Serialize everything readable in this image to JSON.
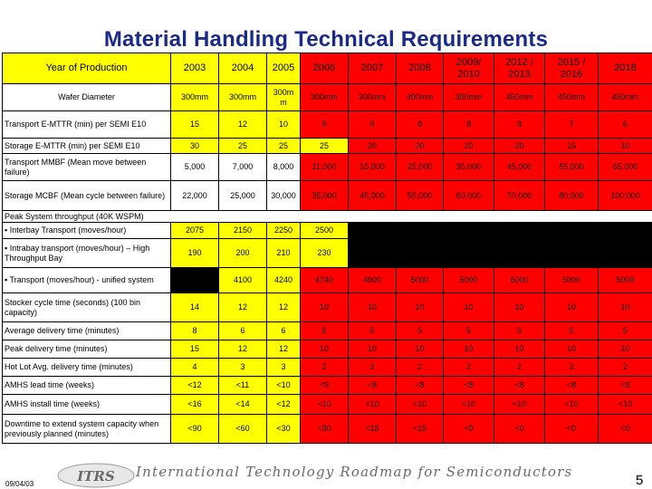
{
  "title": "Material Handling Technical Requirements",
  "header": {
    "label": "Year of Production",
    "years": [
      "2003",
      "2004",
      "2005",
      "2006",
      "2007",
      "2008",
      "2009/ 2010",
      "2012 / 2013",
      "2015 / 2016",
      "2018"
    ]
  },
  "rows": {
    "wafer": {
      "label": "Wafer Diameter",
      "values": [
        "300mm",
        "300mm",
        "300m m",
        "300mm",
        "300mm",
        "300mm",
        "300mm",
        "450mm",
        "450mm",
        "450mm"
      ]
    },
    "transport_mttr": {
      "label": "Transport E-MTTR (min) per SEMI E10",
      "values": [
        "15",
        "12",
        "10",
        "9",
        "9",
        "8",
        "8",
        "8",
        "7",
        "6"
      ]
    },
    "storage_mttr": {
      "label": "Storage E-MTTR (min) per SEMI E10",
      "values": [
        "30",
        "25",
        "25",
        "25",
        "20",
        "20",
        "20",
        "20",
        "15",
        "10"
      ]
    },
    "transport_mmbf": {
      "label": "Transport MMBF (Mean move between failure)",
      "values": [
        "5,000",
        "7,000",
        "8,000",
        "11,000",
        "15,000",
        "25,000",
        "35,000",
        "45,000",
        "55,000",
        "65,000"
      ]
    },
    "storage_mcbf": {
      "label": "Storage MCBF (Mean cycle between failure)",
      "values": [
        "22,000",
        "25,000",
        "30,000",
        "35,000",
        "45,000",
        "55,000",
        "60,000",
        "70,000",
        "80,000",
        "100,000"
      ]
    },
    "peak_header": {
      "label": "Peak System throughput (40K WSPM)"
    },
    "interbay": {
      "label": "▪ Interbay Transport (moves/hour)",
      "values": [
        "2075",
        "2150",
        "2250",
        "2500",
        "",
        "",
        "",
        "",
        "",
        ""
      ]
    },
    "intrabay": {
      "label": "▪ Intrabay transport (moves/hour) – High Throughput Bay",
      "values": [
        "190",
        "200",
        "210",
        "230",
        "",
        "",
        "",
        "",
        "",
        ""
      ]
    },
    "unified": {
      "label": "▪ Transport (moves/hour) - unified system",
      "values": [
        "",
        "4100",
        "4240",
        "4740",
        "4900",
        "5000",
        "5000",
        "5000",
        "5000",
        "5000"
      ]
    },
    "stocker": {
      "label": "Stocker cycle time (seconds) (100 bin capacity)",
      "values": [
        "14",
        "12",
        "12",
        "10",
        "10",
        "10",
        "10",
        "10",
        "10",
        "10"
      ]
    },
    "avg_delivery": {
      "label": "Average delivery time (minutes)",
      "values": [
        "8",
        "6",
        "6",
        "5",
        "5",
        "5",
        "5",
        "5",
        "5",
        "5"
      ]
    },
    "peak_delivery": {
      "label": "Peak delivery time (minutes)",
      "values": [
        "15",
        "12",
        "12",
        "10",
        "10",
        "10",
        "10",
        "10",
        "10",
        "10"
      ]
    },
    "hot_lot": {
      "label": "Hot Lot Avg. delivery time (minutes)",
      "values": [
        "4",
        "3",
        "3",
        "2",
        "2",
        "2",
        "2",
        "2",
        "2",
        "2"
      ]
    },
    "amhs_lead": {
      "label": "AMHS lead time (weeks)",
      "values": [
        "<12",
        "<11",
        "<10",
        "<9",
        "<8",
        "<8",
        "<8",
        "<8",
        "<8",
        "<8"
      ]
    },
    "amhs_install": {
      "label": "AMHS install time (weeks)",
      "values": [
        "<16",
        "<14",
        "<12",
        "<10",
        "<10",
        "<10",
        "<10",
        "<10",
        "<10",
        "<10"
      ]
    },
    "downtime": {
      "label": "Downtime to extend system capacity when previously planned (minutes)",
      "values": [
        "<90",
        "<60",
        "<30",
        "<30",
        "<15",
        "<15",
        "<0",
        "<0",
        "<0",
        "<0"
      ]
    }
  },
  "footer": {
    "date": "09/04/03",
    "logo_text": "ITRS",
    "roadmap": "International Technology Roadmap for Semiconductors",
    "page": "5"
  },
  "colors": {
    "yellow": "#ffff00",
    "red": "#ff0000",
    "black": "#000000",
    "title": "#1a2a8a"
  }
}
